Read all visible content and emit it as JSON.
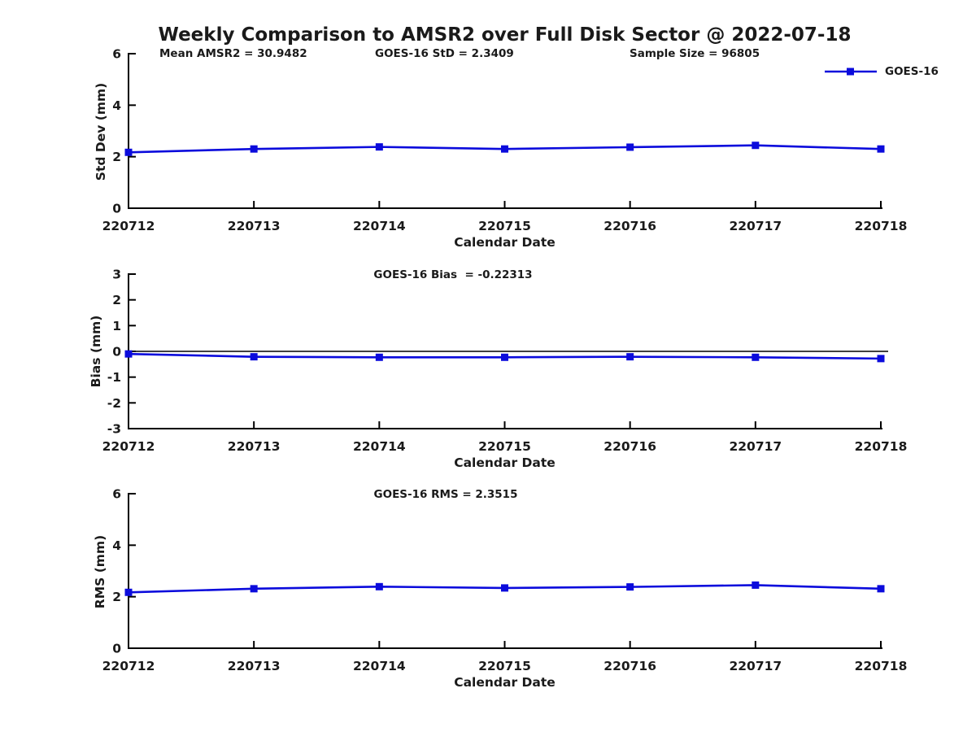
{
  "title": "Weekly Comparison to AMSR2 over Full Disk Sector @ 2022-07-18",
  "legend": {
    "label": "GOES-16",
    "position": "top-right"
  },
  "colors": {
    "series": "#0b0bdc",
    "axis": "#000000",
    "zero_line": "#000000",
    "text": "#1a1a1a"
  },
  "annotations": {
    "mean_amsr2": "Mean AMSR2 = 30.9482",
    "goes16_std": "GOES-16 StD = 2.3409",
    "sample_size": "Sample Size = 96805",
    "goes16_bias": "GOES-16 Bias  = -0.22313",
    "goes16_rms": "GOES-16 RMS = 2.3515"
  },
  "chart_data": [
    {
      "type": "line",
      "marker": "square",
      "grid": false,
      "categories": [
        "220712",
        "220713",
        "220714",
        "220715",
        "220716",
        "220717",
        "220718"
      ],
      "series": [
        {
          "name": "GOES-16",
          "values": [
            2.17,
            2.3,
            2.38,
            2.3,
            2.37,
            2.44,
            2.3
          ]
        }
      ],
      "xlabel": "Calendar Date",
      "ylabel": "Std Dev (mm)",
      "ylim": [
        0,
        6
      ],
      "yticks": [
        0,
        2,
        4,
        6
      ],
      "zero_line": false,
      "annotations": [
        "Mean AMSR2 = 30.9482",
        "GOES-16 StD = 2.3409",
        "Sample Size = 96805"
      ]
    },
    {
      "type": "line",
      "marker": "square",
      "grid": false,
      "categories": [
        "220712",
        "220713",
        "220714",
        "220715",
        "220716",
        "220717",
        "220718"
      ],
      "series": [
        {
          "name": "GOES-16",
          "values": [
            -0.1,
            -0.21,
            -0.23,
            -0.23,
            -0.21,
            -0.23,
            -0.28
          ]
        }
      ],
      "xlabel": "Calendar Date",
      "ylabel": "Bias (mm)",
      "ylim": [
        -3,
        3
      ],
      "yticks": [
        -3,
        -2,
        -1,
        0,
        1,
        2,
        3
      ],
      "zero_line": true,
      "annotations": [
        "GOES-16 Bias  = -0.22313"
      ]
    },
    {
      "type": "line",
      "marker": "square",
      "grid": false,
      "categories": [
        "220712",
        "220713",
        "220714",
        "220715",
        "220716",
        "220717",
        "220718"
      ],
      "series": [
        {
          "name": "GOES-16",
          "values": [
            2.17,
            2.31,
            2.39,
            2.34,
            2.38,
            2.45,
            2.31
          ]
        }
      ],
      "xlabel": "Calendar Date",
      "ylabel": "RMS (mm)",
      "ylim": [
        0,
        6
      ],
      "yticks": [
        0,
        2,
        4,
        6
      ],
      "zero_line": false,
      "annotations": [
        "GOES-16 RMS = 2.3515"
      ]
    }
  ]
}
